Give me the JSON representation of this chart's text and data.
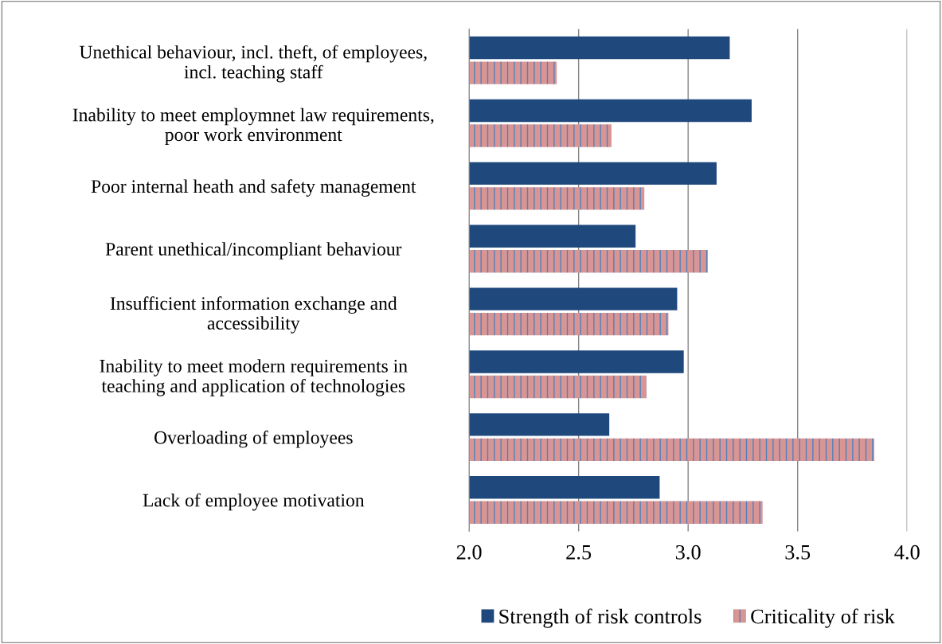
{
  "chart_data": {
    "type": "bar",
    "orientation": "horizontal",
    "categories": [
      "Unethical behaviour, incl. theft, of employees,\nincl. teaching staff",
      "Inability to meet employmnet law requirements,\npoor work environment",
      "Poor internal heath and safety management",
      "Parent unethical/incompliant behaviour",
      "Insufficient information exchange and\naccessibility",
      "Inability to meet modern requirements in\nteaching and application of technologies",
      "Overloading of employees",
      "Lack of employee motivation"
    ],
    "series": [
      {
        "name": "Strength of risk controls",
        "color": "#1f497d",
        "values": [
          3.19,
          3.29,
          3.13,
          2.76,
          2.95,
          2.98,
          2.64,
          2.87
        ]
      },
      {
        "name": "Criticality of risk",
        "color": "#d99594",
        "values": [
          2.4,
          2.65,
          2.8,
          3.09,
          2.91,
          2.81,
          3.85,
          3.34
        ]
      }
    ],
    "xlim": [
      2.0,
      4.0
    ],
    "xticks": [
      {
        "value": 2.0,
        "label": "2.0"
      },
      {
        "value": 2.5,
        "label": "2.5"
      },
      {
        "value": 3.0,
        "label": "3.0"
      },
      {
        "value": 3.5,
        "label": "3.5"
      },
      {
        "value": 4.0,
        "label": "4.0"
      }
    ],
    "grid": "x",
    "legend": "bottom"
  }
}
